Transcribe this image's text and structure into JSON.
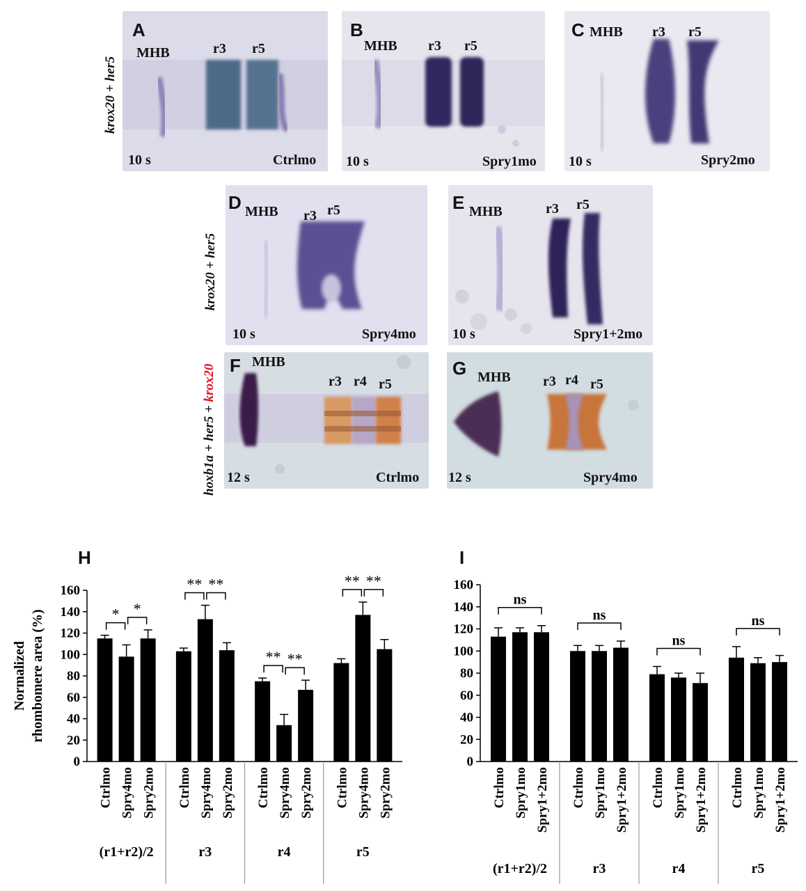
{
  "row_labels": {
    "row1": "krox20 + her5",
    "row2": "krox20 + her5",
    "row3_part1": "hoxb1a + her5 + ",
    "row3_part2": "krox20"
  },
  "panels": {
    "A": {
      "letter": "A",
      "mhb": "MHB",
      "r3": "r3",
      "r5": "r5",
      "stage": "10 s",
      "condition": "Ctrlmo"
    },
    "B": {
      "letter": "B",
      "mhb": "MHB",
      "r3": "r3",
      "r5": "r5",
      "stage": "10 s",
      "condition": "Spry1mo"
    },
    "C": {
      "letter": "C",
      "mhb": "MHB",
      "r3": "r3",
      "r5": "r5",
      "stage": "10 s",
      "condition": "Spry2mo"
    },
    "D": {
      "letter": "D",
      "mhb": "MHB",
      "r3": "r3",
      "r5": "r5",
      "stage": "10 s",
      "condition": "Spry4mo"
    },
    "E": {
      "letter": "E",
      "mhb": "MHB",
      "r3": "r3",
      "r5": "r5",
      "stage": "10 s",
      "condition": "Spry1+2mo"
    },
    "F": {
      "letter": "F",
      "mhb": "MHB",
      "r3": "r3",
      "r4": "r4",
      "r5": "r5",
      "stage": "12 s",
      "condition": "Ctrlmo"
    },
    "G": {
      "letter": "G",
      "mhb": "MHB",
      "r3": "r3",
      "r4": "r4",
      "r5": "r5",
      "stage": "12 s",
      "condition": "Spry4mo"
    }
  },
  "chart_data": [
    {
      "type": "bar",
      "panel": "H",
      "ylabel": "Normalized rhombomere area (%)",
      "ylim": [
        0,
        160
      ],
      "yticks": [
        0,
        20,
        40,
        60,
        80,
        100,
        120,
        140,
        160
      ],
      "groups": [
        {
          "name": "(r1+r2)/2",
          "bars": [
            {
              "label": "Ctrlmo",
              "value": 115,
              "err": 3
            },
            {
              "label": "Spry4mo",
              "value": 98,
              "err": 11
            },
            {
              "label": "Spry2mo",
              "value": 115,
              "err": 8
            }
          ],
          "sig": [
            {
              "from": 0,
              "to": 1,
              "text": "*"
            },
            {
              "from": 1,
              "to": 2,
              "text": "*"
            }
          ]
        },
        {
          "name": "r3",
          "bars": [
            {
              "label": "Ctrlmo",
              "value": 103,
              "err": 3
            },
            {
              "label": "Spry4mo",
              "value": 133,
              "err": 13
            },
            {
              "label": "Spry2mo",
              "value": 104,
              "err": 7
            }
          ],
          "sig": [
            {
              "from": 0,
              "to": 1,
              "text": "**"
            },
            {
              "from": 1,
              "to": 2,
              "text": "**"
            }
          ]
        },
        {
          "name": "r4",
          "bars": [
            {
              "label": "Ctrlmo",
              "value": 75,
              "err": 3
            },
            {
              "label": "Spry4mo",
              "value": 34,
              "err": 10
            },
            {
              "label": "Spry2mo",
              "value": 67,
              "err": 9
            }
          ],
          "sig": [
            {
              "from": 0,
              "to": 1,
              "text": "**"
            },
            {
              "from": 1,
              "to": 2,
              "text": "**"
            }
          ]
        },
        {
          "name": "r5",
          "bars": [
            {
              "label": "Ctrlmo",
              "value": 92,
              "err": 4
            },
            {
              "label": "Spry4mo",
              "value": 137,
              "err": 12
            },
            {
              "label": "Spry2mo",
              "value": 105,
              "err": 9
            }
          ],
          "sig": [
            {
              "from": 0,
              "to": 1,
              "text": "**"
            },
            {
              "from": 1,
              "to": 2,
              "text": "**"
            }
          ]
        }
      ]
    },
    {
      "type": "bar",
      "panel": "I",
      "ylim": [
        0,
        160
      ],
      "yticks": [
        0,
        20,
        40,
        60,
        80,
        100,
        120,
        140,
        160
      ],
      "groups": [
        {
          "name": "(r1+r2)/2",
          "bars": [
            {
              "label": "Ctrlmo",
              "value": 113,
              "err": 8
            },
            {
              "label": "Spry1mo",
              "value": 117,
              "err": 4
            },
            {
              "label": "Spry1+2mo",
              "value": 117,
              "err": 6
            }
          ],
          "sig": [
            {
              "from": 0,
              "to": 2,
              "text": "ns"
            }
          ]
        },
        {
          "name": "r3",
          "bars": [
            {
              "label": "Ctrlmo",
              "value": 100,
              "err": 5
            },
            {
              "label": "Spry1mo",
              "value": 100,
              "err": 5
            },
            {
              "label": "Spry1+2mo",
              "value": 103,
              "err": 6
            }
          ],
          "sig": [
            {
              "from": 0,
              "to": 2,
              "text": "ns"
            }
          ]
        },
        {
          "name": "r4",
          "bars": [
            {
              "label": "Ctrlmo",
              "value": 79,
              "err": 7
            },
            {
              "label": "Spry1mo",
              "value": 76,
              "err": 4
            },
            {
              "label": "Spry1+2mo",
              "value": 71,
              "err": 9
            }
          ],
          "sig": [
            {
              "from": 0,
              "to": 2,
              "text": "ns"
            }
          ]
        },
        {
          "name": "r5",
          "bars": [
            {
              "label": "Ctrlmo",
              "value": 94,
              "err": 10
            },
            {
              "label": "Spry1mo",
              "value": 89,
              "err": 5
            },
            {
              "label": "Spry1+2mo",
              "value": 90,
              "err": 6
            }
          ],
          "sig": [
            {
              "from": 0,
              "to": 2,
              "text": "ns"
            }
          ]
        }
      ]
    }
  ],
  "chart_letters": {
    "H": "H",
    "I": "I"
  }
}
